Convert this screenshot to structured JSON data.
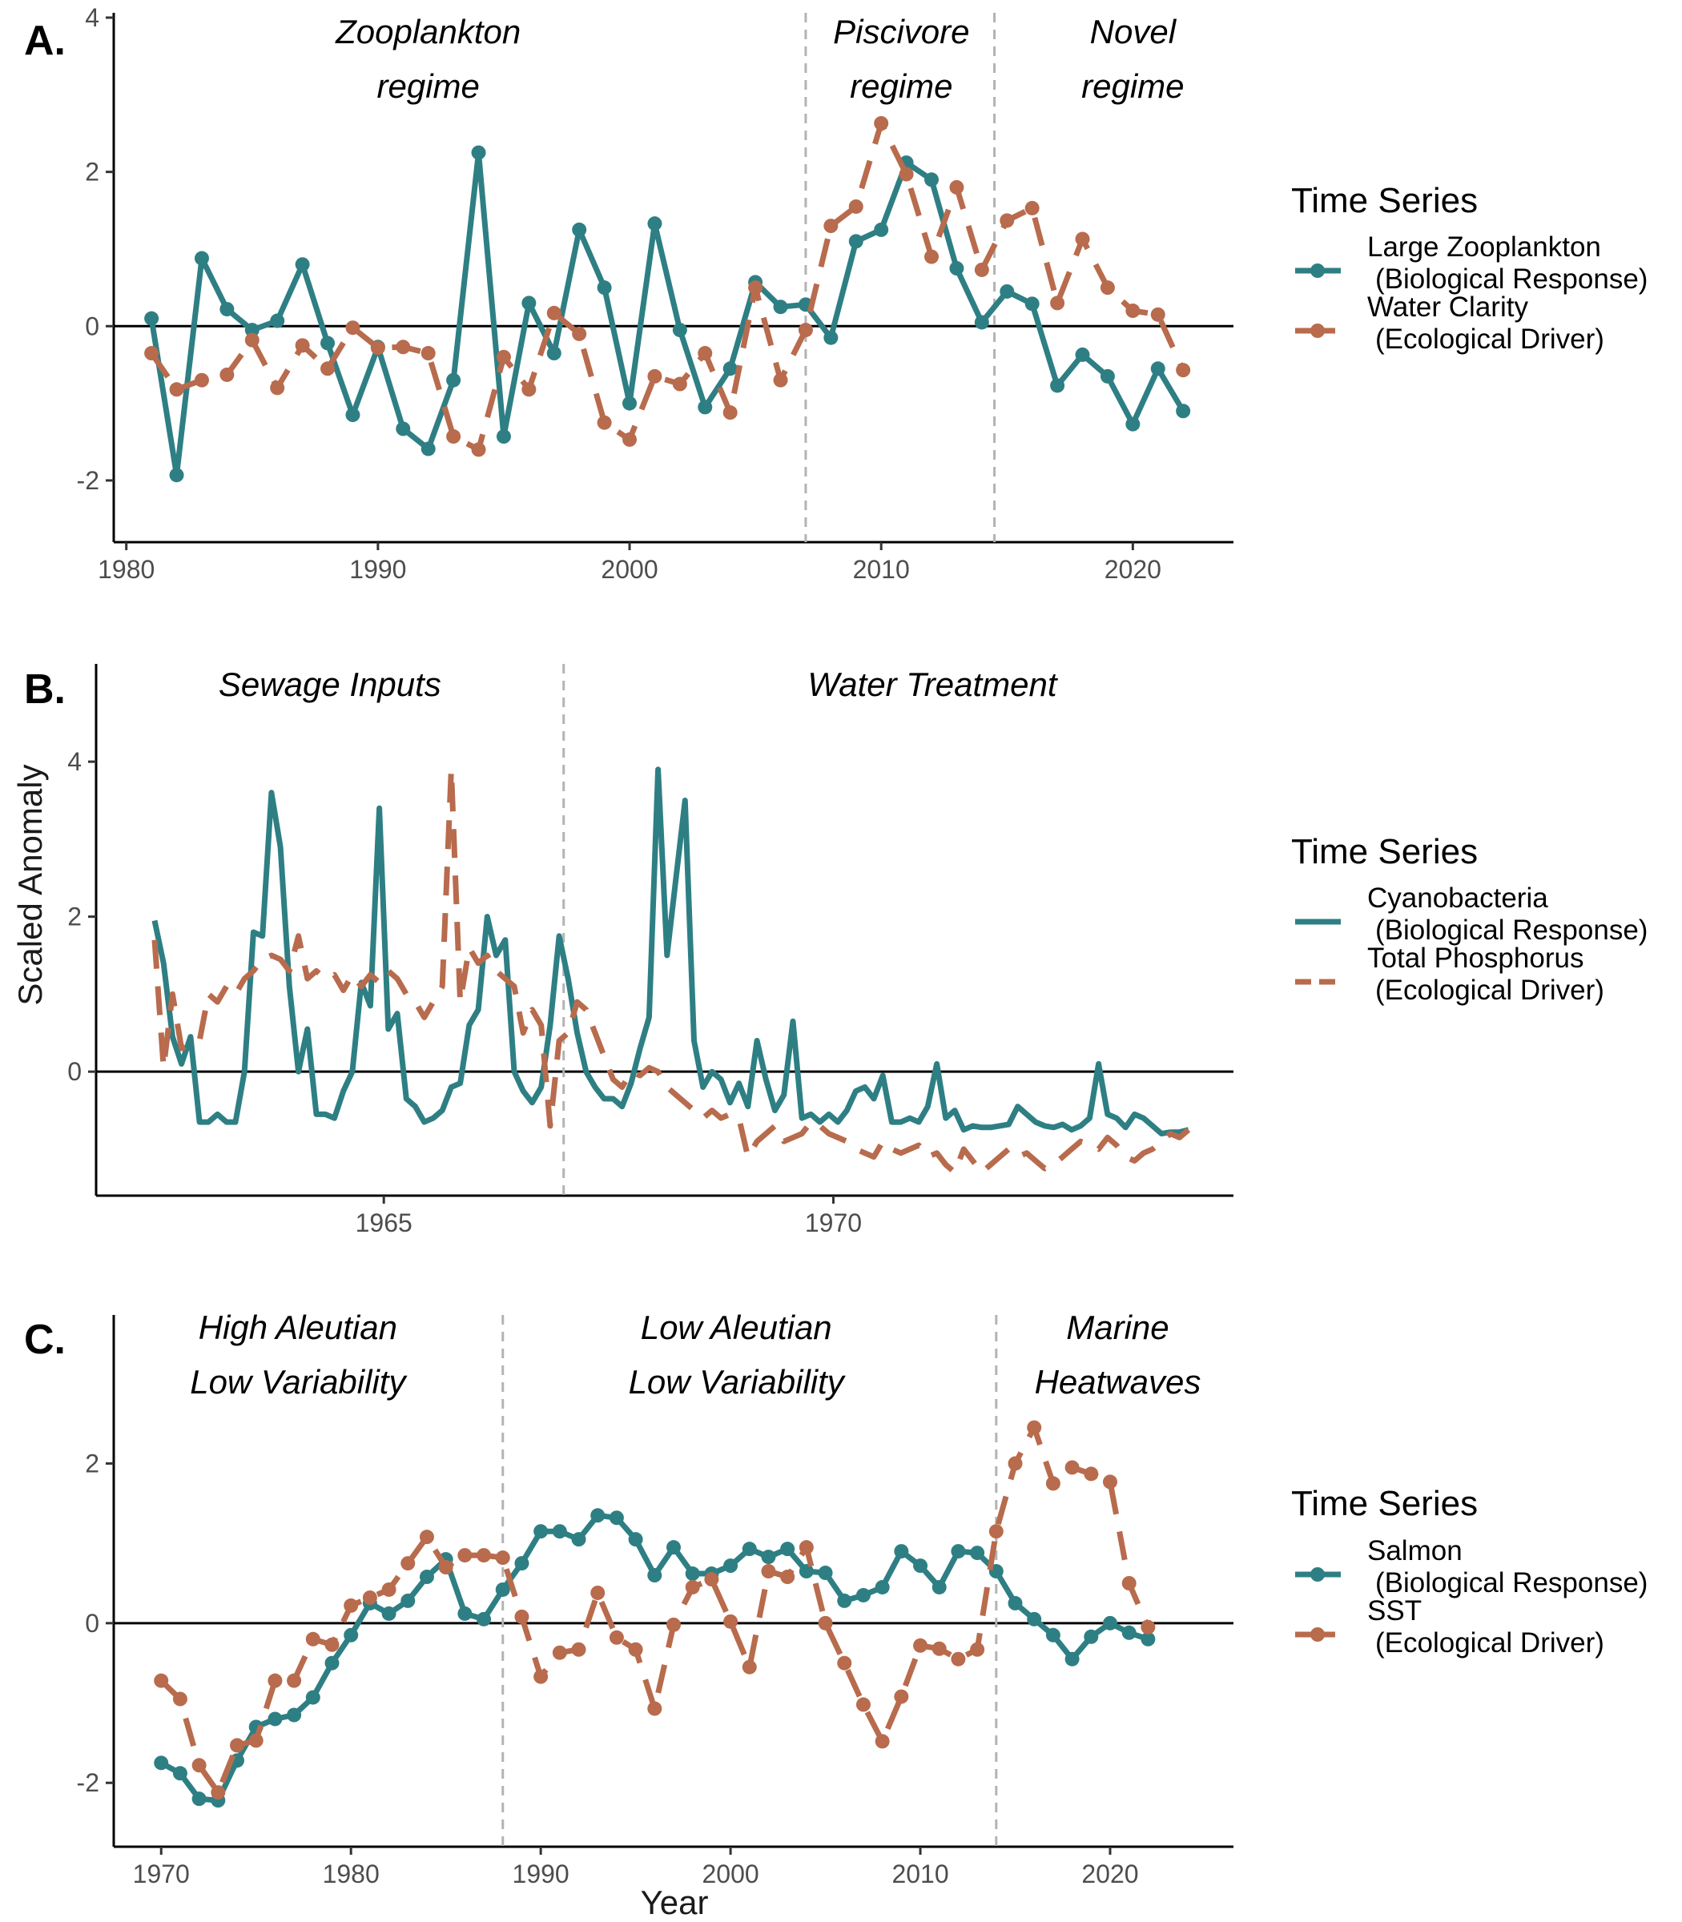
{
  "figure": {
    "y_axis_label": "Scaled Anomaly",
    "x_axis_label": "Year"
  },
  "chart_data": [
    {
      "type": "line",
      "panel_label": "A.",
      "legend_title": "Time Series",
      "xlim": [
        1979.5,
        2024
      ],
      "ylim": [
        -2.8,
        4
      ],
      "x_ticks": [
        1980,
        1990,
        2000,
        2010,
        2020
      ],
      "y_ticks": [
        -2,
        0,
        2,
        4
      ],
      "regime_breaks": [
        2007,
        2014.5
      ],
      "annotations": [
        {
          "lines": [
            "Zooplankton",
            "regime"
          ],
          "x": 1992
        },
        {
          "lines": [
            "Piscivore",
            "regime"
          ],
          "x": 2010.8
        },
        {
          "lines": [
            "Novel",
            "regime"
          ],
          "x": 2020
        }
      ],
      "series": [
        {
          "name": "Large Zooplankton",
          "role": "(Biological Response)",
          "color": "#2e7f84",
          "style": "solid",
          "markers": true,
          "x": [
            1981,
            1982,
            1983,
            1984,
            1985,
            1986,
            1987,
            1988,
            1989,
            1990,
            1991,
            1992,
            1993,
            1994,
            1995,
            1996,
            1997,
            1998,
            1999,
            2000,
            2001,
            2002,
            2003,
            2004,
            2005,
            2006,
            2007,
            2008,
            2009,
            2010,
            2011,
            2012,
            2013,
            2014,
            2015,
            2016,
            2017,
            2018,
            2019,
            2020,
            2021,
            2022
          ],
          "y": [
            0.1,
            -1.93,
            0.88,
            0.22,
            -0.05,
            0.07,
            0.8,
            -0.22,
            -1.15,
            -0.27,
            -1.33,
            -1.59,
            -0.7,
            2.25,
            -1.43,
            0.3,
            -0.35,
            1.25,
            0.5,
            -1.0,
            1.33,
            -0.05,
            -1.05,
            -0.55,
            0.57,
            0.25,
            0.28,
            -0.15,
            1.1,
            1.25,
            2.12,
            1.9,
            0.75,
            0.05,
            0.45,
            0.29,
            -0.77,
            -0.37,
            -0.65,
            -1.27,
            -0.55,
            -1.1
          ]
        },
        {
          "name": "Water Clarity",
          "role": "(Ecological Driver)",
          "color": "#b86b4d",
          "style": "dashed",
          "markers": true,
          "x": [
            1981,
            1982,
            1983,
            1984,
            1985,
            1986,
            1987,
            1988,
            1989,
            1990,
            1991,
            1992,
            1993,
            1994,
            1995,
            1996,
            1997,
            1998,
            1999,
            2000,
            2001,
            2002,
            2003,
            2004,
            2005,
            2006,
            2007,
            2008,
            2009,
            2010,
            2011,
            2012,
            2013,
            2014,
            2015,
            2016,
            2017,
            2018,
            2019,
            2020,
            2021,
            2022
          ],
          "y": [
            -0.35,
            -0.82,
            -0.7,
            -0.63,
            -0.18,
            -0.8,
            -0.25,
            -0.55,
            -0.02,
            -0.28,
            -0.27,
            -0.35,
            -1.43,
            -1.6,
            -0.4,
            -0.82,
            0.17,
            -0.1,
            -1.25,
            -1.47,
            -0.65,
            -0.75,
            -0.35,
            -1.12,
            0.5,
            -0.7,
            -0.05,
            1.3,
            1.55,
            2.63,
            1.97,
            0.9,
            1.8,
            0.73,
            1.37,
            1.53,
            0.3,
            1.13,
            0.5,
            0.2,
            0.15,
            -0.57
          ]
        }
      ]
    },
    {
      "type": "line",
      "panel_label": "B.",
      "legend_title": "Time Series",
      "xlim": [
        1961.8,
        1974.45
      ],
      "ylim": [
        -1.6,
        5.2
      ],
      "x_ticks": [
        1965,
        1970
      ],
      "y_ticks": [
        0,
        2,
        4
      ],
      "regime_breaks": [
        1967
      ],
      "annotations": [
        {
          "lines": [
            "Sewage Inputs"
          ],
          "x": 1964.4
        },
        {
          "lines": [
            "Water Treatment"
          ],
          "x": 1971.1
        }
      ],
      "series": [
        {
          "name": "Cyanobacteria",
          "role": "(Biological Response)",
          "color": "#2e7f84",
          "style": "solid",
          "markers": false,
          "x": [
            1962.45,
            1962.55,
            1962.65,
            1962.75,
            1962.85,
            1962.95,
            1963.05,
            1963.15,
            1963.25,
            1963.35,
            1963.45,
            1963.55,
            1963.65,
            1963.75,
            1963.85,
            1963.95,
            1964.05,
            1964.15,
            1964.25,
            1964.35,
            1964.45,
            1964.55,
            1964.65,
            1964.75,
            1964.85,
            1964.95,
            1965.05,
            1965.15,
            1965.25,
            1965.35,
            1965.45,
            1965.55,
            1965.65,
            1965.75,
            1965.85,
            1965.95,
            1966.05,
            1966.15,
            1966.25,
            1966.35,
            1966.45,
            1966.55,
            1966.65,
            1966.75,
            1966.85,
            1966.95,
            1967.05,
            1967.15,
            1967.25,
            1967.35,
            1967.45,
            1967.55,
            1967.65,
            1967.75,
            1967.85,
            1967.95,
            1968.05,
            1968.15,
            1968.25,
            1968.35,
            1968.45,
            1968.55,
            1968.65,
            1968.75,
            1968.85,
            1968.95,
            1969.05,
            1969.15,
            1969.25,
            1969.35,
            1969.45,
            1969.55,
            1969.65,
            1969.75,
            1969.85,
            1969.95,
            1970.05,
            1970.15,
            1970.25,
            1970.35,
            1970.45,
            1970.55,
            1970.65,
            1970.75,
            1970.85,
            1970.95,
            1971.05,
            1971.15,
            1971.25,
            1971.35,
            1971.45,
            1971.55,
            1971.65,
            1971.75,
            1971.85,
            1971.95,
            1972.05,
            1972.15,
            1972.25,
            1972.35,
            1972.45,
            1972.55,
            1972.65,
            1972.75,
            1972.85,
            1972.95,
            1973.05,
            1973.15,
            1973.25,
            1973.35,
            1973.45,
            1973.55,
            1973.65,
            1973.75,
            1973.85,
            1973.95
          ],
          "y": [
            1.95,
            1.4,
            0.45,
            0.1,
            0.45,
            -0.65,
            -0.65,
            -0.55,
            -0.65,
            -0.65,
            0.0,
            1.8,
            1.75,
            3.6,
            2.9,
            1.1,
            0.0,
            0.55,
            -0.55,
            -0.55,
            -0.6,
            -0.25,
            0.0,
            1.15,
            0.85,
            3.4,
            0.55,
            0.75,
            -0.35,
            -0.45,
            -0.65,
            -0.6,
            -0.5,
            -0.2,
            -0.15,
            0.6,
            0.8,
            2.0,
            1.5,
            1.7,
            0.0,
            -0.25,
            -0.4,
            -0.2,
            0.6,
            1.75,
            1.2,
            0.5,
            0.0,
            -0.2,
            -0.35,
            -0.35,
            -0.45,
            -0.15,
            0.3,
            0.7,
            3.9,
            1.5,
            2.5,
            3.5,
            0.4,
            -0.2,
            0.0,
            -0.1,
            -0.4,
            -0.15,
            -0.45,
            0.4,
            -0.1,
            -0.5,
            -0.3,
            0.65,
            -0.6,
            -0.55,
            -0.65,
            -0.55,
            -0.65,
            -0.5,
            -0.25,
            -0.2,
            -0.35,
            -0.05,
            -0.65,
            -0.65,
            -0.6,
            -0.65,
            -0.45,
            0.1,
            -0.6,
            -0.5,
            -0.75,
            -0.7,
            -0.72,
            -0.72,
            -0.7,
            -0.68,
            -0.45,
            -0.55,
            -0.65,
            -0.7,
            -0.72,
            -0.68,
            -0.75,
            -0.7,
            -0.6,
            0.1,
            -0.55,
            -0.6,
            -0.72,
            -0.55,
            -0.6,
            -0.7,
            -0.8,
            -0.78,
            -0.78,
            -0.75
          ]
        },
        {
          "name": "Total Phosphorus",
          "role": "(Ecological Driver)",
          "color": "#b86b4d",
          "style": "dashed",
          "markers": false,
          "x": [
            1962.45,
            1962.55,
            1962.65,
            1962.75,
            1962.85,
            1962.95,
            1963.05,
            1963.15,
            1963.25,
            1963.35,
            1963.45,
            1963.55,
            1963.65,
            1963.75,
            1963.85,
            1963.95,
            1964.05,
            1964.15,
            1964.25,
            1964.35,
            1964.45,
            1964.55,
            1964.65,
            1964.75,
            1964.85,
            1964.95,
            1965.05,
            1965.15,
            1965.25,
            1965.35,
            1965.45,
            1965.55,
            1965.65,
            1965.75,
            1965.85,
            1965.95,
            1966.05,
            1966.15,
            1966.25,
            1966.35,
            1966.45,
            1966.55,
            1966.65,
            1966.75,
            1966.85,
            1966.95,
            1967.05,
            1967.15,
            1967.25,
            1967.35,
            1967.45,
            1967.55,
            1967.65,
            1967.75,
            1967.85,
            1967.95,
            1968.05,
            1968.15,
            1968.25,
            1968.35,
            1968.45,
            1968.55,
            1968.65,
            1968.75,
            1968.85,
            1968.95,
            1969.05,
            1969.15,
            1969.25,
            1969.35,
            1969.45,
            1969.55,
            1969.65,
            1969.75,
            1969.85,
            1969.95,
            1970.05,
            1970.15,
            1970.25,
            1970.35,
            1970.45,
            1970.55,
            1970.65,
            1970.75,
            1970.85,
            1970.95,
            1971.05,
            1971.15,
            1971.25,
            1971.35,
            1971.45,
            1971.55,
            1971.65,
            1971.75,
            1971.85,
            1971.95,
            1972.05,
            1972.15,
            1972.25,
            1972.35,
            1972.45,
            1972.55,
            1972.65,
            1972.75,
            1972.85,
            1972.95,
            1973.05,
            1973.15,
            1973.25,
            1973.35,
            1973.45,
            1973.55,
            1973.65,
            1973.75,
            1973.85,
            1973.95
          ],
          "y": [
            1.7,
            0.05,
            1.0,
            0.3,
            0.35,
            0.4,
            1.0,
            0.9,
            1.1,
            1.0,
            1.2,
            1.3,
            1.45,
            1.5,
            1.45,
            1.3,
            1.75,
            1.2,
            1.3,
            1.2,
            1.25,
            1.05,
            1.25,
            1.1,
            1.25,
            1.15,
            1.3,
            1.2,
            1.0,
            0.9,
            0.7,
            0.9,
            1.1,
            3.9,
            0.9,
            1.6,
            1.4,
            1.5,
            1.3,
            1.2,
            1.1,
            0.5,
            0.8,
            0.6,
            -0.7,
            0.4,
            0.5,
            0.9,
            0.8,
            0.5,
            0.2,
            -0.1,
            -0.2,
            0.0,
            -0.05,
            0.05,
            0.0,
            -0.2,
            -0.3,
            -0.4,
            -0.5,
            -0.6,
            -0.5,
            -0.6,
            -0.55,
            -0.6,
            -1.1,
            -0.9,
            -0.8,
            -0.7,
            -0.9,
            -0.85,
            -0.8,
            -0.65,
            -0.7,
            -0.8,
            -0.85,
            -0.9,
            -1.0,
            -1.05,
            -1.1,
            -0.9,
            -1.0,
            -1.05,
            -1.0,
            -0.95,
            -1.1,
            -1.05,
            -1.2,
            -1.3,
            -1.0,
            -1.15,
            -1.3,
            -1.2,
            -1.1,
            -1.0,
            -1.1,
            -1.05,
            -1.15,
            -1.25,
            -1.2,
            -1.1,
            -1.0,
            -0.9,
            -0.95,
            -1.0,
            -0.85,
            -0.95,
            -1.1,
            -1.15,
            -1.05,
            -1.0,
            -0.9,
            -0.8,
            -0.85,
            -0.75
          ]
        }
      ]
    },
    {
      "type": "line",
      "panel_label": "C.",
      "legend_title": "Time Series",
      "xlim": [
        1967.5,
        2026.5
      ],
      "ylim": [
        -2.8,
        3.8
      ],
      "x_ticks": [
        1970,
        1980,
        1990,
        2000,
        2010,
        2020
      ],
      "y_ticks": [
        -2,
        0,
        2
      ],
      "regime_breaks": [
        1988,
        2014
      ],
      "annotations": [
        {
          "lines": [
            "High Aleutian",
            "Low Variability"
          ],
          "x": 1977.2
        },
        {
          "lines": [
            "Low Aleutian",
            "Low Variability"
          ],
          "x": 2000.3
        },
        {
          "lines": [
            "Marine",
            "Heatwaves"
          ],
          "x": 2020.4
        }
      ],
      "series": [
        {
          "name": "Salmon",
          "role": "(Biological Response)",
          "color": "#2e7f84",
          "style": "solid",
          "markers": true,
          "x": [
            1970,
            1971,
            1972,
            1973,
            1974,
            1975,
            1976,
            1977,
            1978,
            1979,
            1980,
            1981,
            1982,
            1983,
            1984,
            1985,
            1986,
            1987,
            1988,
            1989,
            1990,
            1991,
            1992,
            1993,
            1994,
            1995,
            1996,
            1997,
            1998,
            1999,
            2000,
            2001,
            2002,
            2003,
            2004,
            2005,
            2006,
            2007,
            2008,
            2009,
            2010,
            2011,
            2012,
            2013,
            2014,
            2015,
            2016,
            2017,
            2018,
            2019,
            2020,
            2021,
            2022
          ],
          "y": [
            -1.75,
            -1.88,
            -2.2,
            -2.22,
            -1.72,
            -1.3,
            -1.2,
            -1.15,
            -0.93,
            -0.5,
            -0.15,
            0.25,
            0.12,
            0.28,
            0.58,
            0.8,
            0.12,
            0.05,
            0.42,
            0.75,
            1.15,
            1.15,
            1.05,
            1.35,
            1.32,
            1.05,
            0.6,
            0.95,
            0.62,
            0.62,
            0.72,
            0.93,
            0.83,
            0.93,
            0.65,
            0.63,
            0.28,
            0.35,
            0.45,
            0.9,
            0.72,
            0.45,
            0.9,
            0.88,
            0.65,
            0.25,
            0.05,
            -0.15,
            -0.45,
            -0.17,
            0.0,
            -0.12,
            -0.2
          ]
        },
        {
          "name": "SST",
          "role": "(Ecological Driver)",
          "color": "#b86b4d",
          "style": "dashed",
          "markers": true,
          "x": [
            1970,
            1971,
            1972,
            1973,
            1974,
            1975,
            1976,
            1977,
            1978,
            1979,
            1980,
            1981,
            1982,
            1983,
            1984,
            1985,
            1986,
            1987,
            1988,
            1989,
            1990,
            1991,
            1992,
            1993,
            1994,
            1995,
            1996,
            1997,
            1998,
            1999,
            2000,
            2001,
            2002,
            2003,
            2004,
            2005,
            2006,
            2007,
            2008,
            2009,
            2010,
            2011,
            2012,
            2013,
            2014,
            2015,
            2016,
            2017,
            2018,
            2019,
            2020,
            2021,
            2022
          ],
          "y": [
            -0.72,
            -0.95,
            -1.78,
            -2.12,
            -1.53,
            -1.47,
            -0.72,
            -0.72,
            -0.2,
            -0.27,
            0.22,
            0.32,
            0.42,
            0.75,
            1.08,
            0.7,
            0.85,
            0.85,
            0.82,
            0.08,
            -0.67,
            -0.37,
            -0.33,
            0.38,
            -0.18,
            -0.33,
            -1.07,
            -0.02,
            0.45,
            0.55,
            0.02,
            -0.55,
            0.65,
            0.58,
            0.95,
            0.0,
            -0.5,
            -1.02,
            -1.48,
            -0.92,
            -0.28,
            -0.32,
            -0.45,
            -0.33,
            1.15,
            2.0,
            2.45,
            1.75,
            1.95,
            1.87,
            1.77,
            0.5,
            -0.05
          ]
        }
      ]
    }
  ]
}
